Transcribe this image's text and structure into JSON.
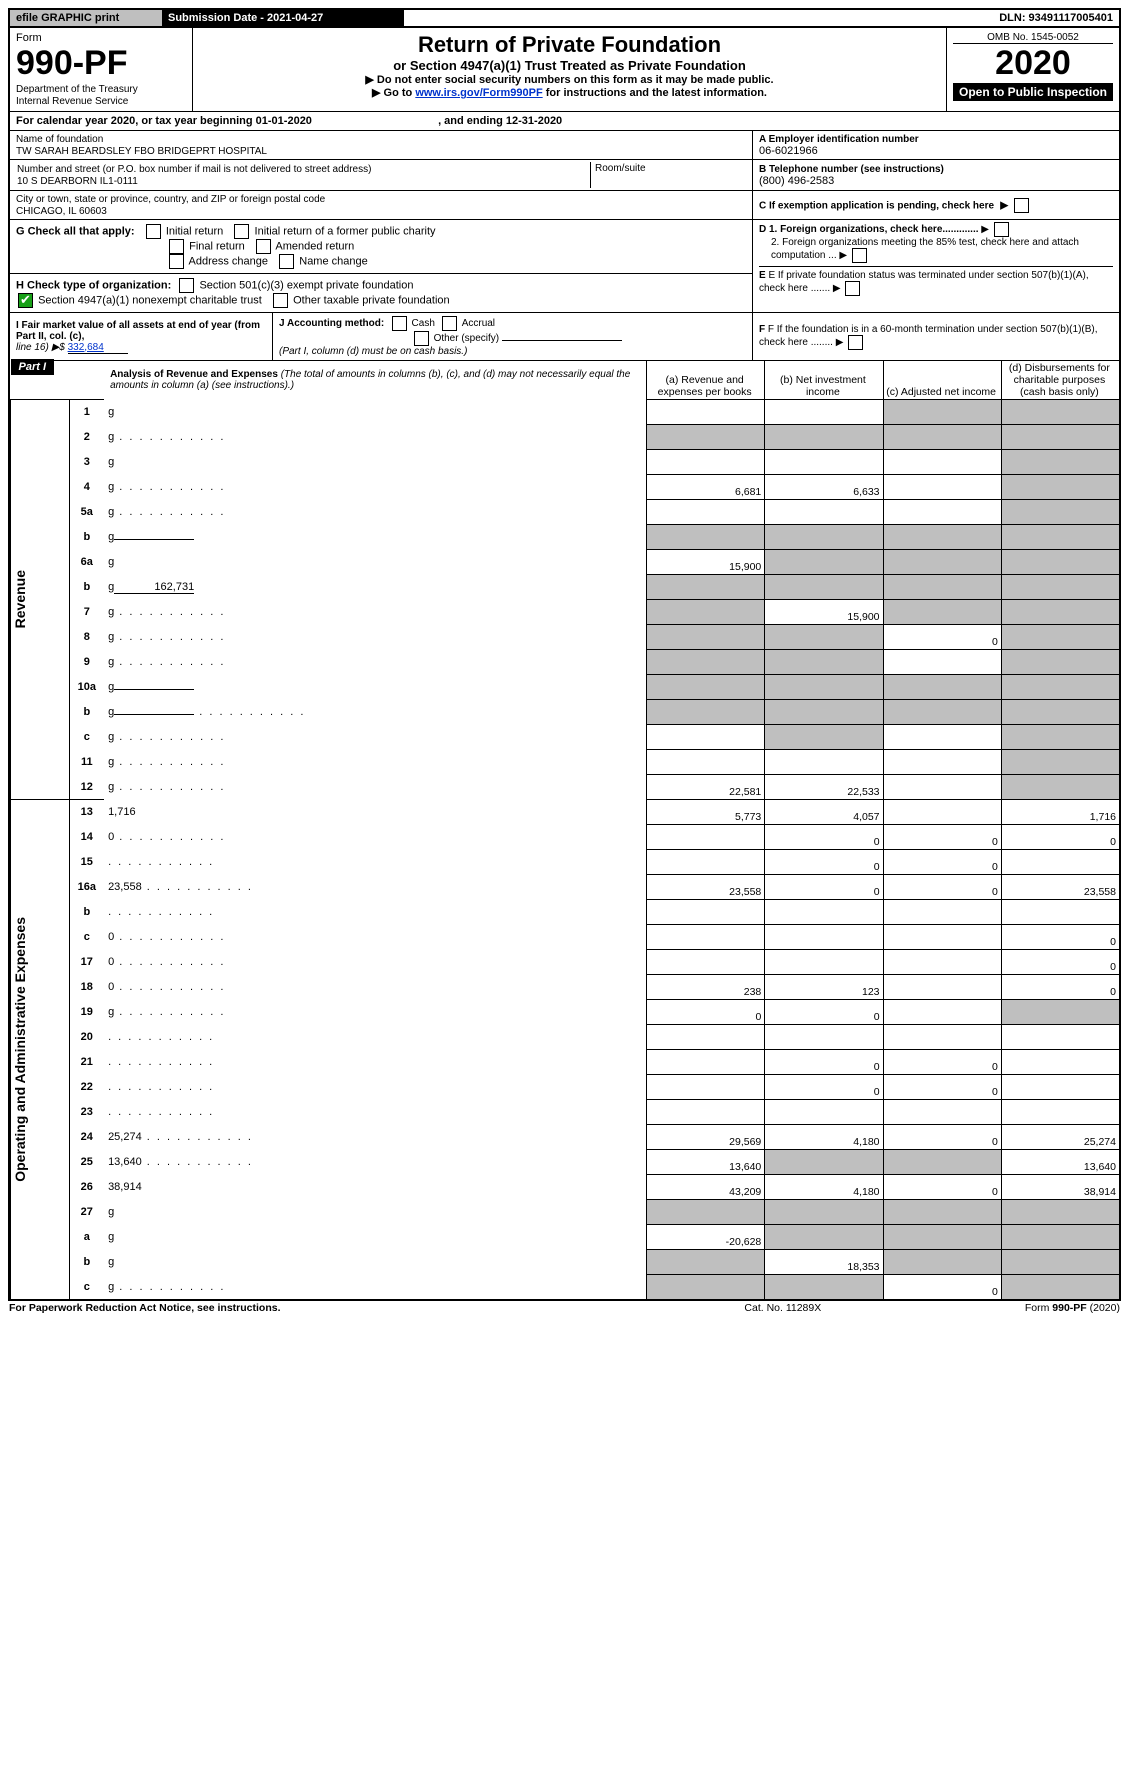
{
  "topbar": {
    "efile": "efile GRAPHIC print",
    "submission": "Submission Date - 2021-04-27",
    "dln": "DLN: 93491117005401"
  },
  "header": {
    "form_label": "Form",
    "form_no": "990-PF",
    "dept": "Department of the Treasury",
    "irs": "Internal Revenue Service",
    "title": "Return of Private Foundation",
    "subtitle": "or Section 4947(a)(1) Trust Treated as Private Foundation",
    "note1": "▶ Do not enter social security numbers on this form as it may be made public.",
    "note2_pre": "▶ Go to ",
    "note2_link": "www.irs.gov/Form990PF",
    "note2_post": " for instructions and the latest information.",
    "omb": "OMB No. 1545-0052",
    "year": "2020",
    "open": "Open to Public Inspection"
  },
  "calendar": {
    "text_pre": "For calendar year 2020, or tax year beginning ",
    "begin": "01-01-2020",
    "mid": ", and ending ",
    "end": "12-31-2020"
  },
  "entity": {
    "name_label": "Name of foundation",
    "name": "TW SARAH BEARDSLEY FBO BRIDGEPRT HOSPITAL",
    "addr_label": "Number and street (or P.O. box number if mail is not delivered to street address)",
    "addr": "10 S DEARBORN IL1-0111",
    "room_label": "Room/suite",
    "city_label": "City or town, state or province, country, and ZIP or foreign postal code",
    "city": "CHICAGO, IL  60603",
    "a_label": "A Employer identification number",
    "a_val": "06-6021966",
    "b_label": "B  Telephone number (see instructions)",
    "b_val": "(800) 496-2583",
    "c_label": "C  If exemption application is pending, check here",
    "d1": "D 1. Foreign organizations, check here.............",
    "d2": "2. Foreign organizations meeting the 85% test, check here and attach computation ...",
    "e_label": "E  If private foundation status was terminated under section 507(b)(1)(A), check here .......",
    "f_label": "F  If the foundation is in a 60-month termination under section 507(b)(1)(B), check here ........"
  },
  "g": {
    "label": "G Check all that apply:",
    "opts": [
      "Initial return",
      "Initial return of a former public charity",
      "Final return",
      "Amended return",
      "Address change",
      "Name change"
    ]
  },
  "h": {
    "label": "H Check type of organization:",
    "opt1": "Section 501(c)(3) exempt private foundation",
    "opt2": "Section 4947(a)(1) nonexempt charitable trust",
    "opt3": "Other taxable private foundation"
  },
  "i": {
    "label": "I Fair market value of all assets at end of year (from Part II, col. (c),",
    "line": "line 16) ▶$ ",
    "val": "332,684"
  },
  "j": {
    "label": "J Accounting method:",
    "cash": "Cash",
    "accrual": "Accrual",
    "other": "Other (specify)",
    "note": "(Part I, column (d) must be on cash basis.)"
  },
  "part1": {
    "hdr": "Part I",
    "title": "Analysis of Revenue and Expenses",
    "title_note": "(The total of amounts in columns (b), (c), and (d) may not necessarily equal the amounts in column (a) (see instructions).)",
    "col_a": "(a)   Revenue and expenses per books",
    "col_b": "(b)  Net investment income",
    "col_c": "(c)  Adjusted net income",
    "col_d": "(d)  Disbursements for charitable purposes (cash basis only)"
  },
  "sections": {
    "revenue": "Revenue",
    "opex": "Operating and Administrative Expenses"
  },
  "rows": [
    {
      "n": "1",
      "d": "g",
      "a": "",
      "b": "",
      "c": "g"
    },
    {
      "n": "2",
      "d": "g",
      "a": "g",
      "b": "g",
      "c": "g",
      "dots": 1
    },
    {
      "n": "3",
      "d": "g",
      "a": "",
      "b": "",
      "c": ""
    },
    {
      "n": "4",
      "d": "g",
      "a": "6,681",
      "b": "6,633",
      "c": "",
      "dots": 1
    },
    {
      "n": "5a",
      "d": "g",
      "a": "",
      "b": "",
      "c": "",
      "dots": 1
    },
    {
      "n": "b",
      "d": "g",
      "a": "g",
      "b": "g",
      "c": "g",
      "uline": 1
    },
    {
      "n": "6a",
      "d": "g",
      "a": "15,900",
      "b": "g",
      "c": "g"
    },
    {
      "n": "b",
      "d": "g",
      "a": "g",
      "b": "g",
      "c": "g",
      "uline": 1,
      "uval": "162,731"
    },
    {
      "n": "7",
      "d": "g",
      "a": "g",
      "b": "15,900",
      "c": "g",
      "dots": 1
    },
    {
      "n": "8",
      "d": "g",
      "a": "g",
      "b": "g",
      "c": "0",
      "dots": 1
    },
    {
      "n": "9",
      "d": "g",
      "a": "g",
      "b": "g",
      "c": "",
      "dots": 1
    },
    {
      "n": "10a",
      "d": "g",
      "a": "g",
      "b": "g",
      "c": "g",
      "uline": 1
    },
    {
      "n": "b",
      "d": "g",
      "a": "g",
      "b": "g",
      "c": "g",
      "uline": 1,
      "dots": 1
    },
    {
      "n": "c",
      "d": "g",
      "a": "",
      "b": "g",
      "c": "",
      "dots": 1
    },
    {
      "n": "11",
      "d": "g",
      "a": "",
      "b": "",
      "c": "",
      "dots": 1
    },
    {
      "n": "12",
      "d": "g",
      "a": "22,581",
      "b": "22,533",
      "c": "",
      "dots": 1
    },
    {
      "n": "13",
      "d": "1,716",
      "a": "5,773",
      "b": "4,057",
      "c": ""
    },
    {
      "n": "14",
      "d": "0",
      "a": "",
      "b": "0",
      "c": "0",
      "dots": 1
    },
    {
      "n": "15",
      "d": "",
      "a": "",
      "b": "0",
      "c": "0",
      "dots": 1
    },
    {
      "n": "16a",
      "d": "23,558",
      "a": "23,558",
      "b": "0",
      "c": "0",
      "dots": 1
    },
    {
      "n": "b",
      "d": "",
      "a": "",
      "b": "",
      "c": "",
      "dots": 1
    },
    {
      "n": "c",
      "d": "0",
      "a": "",
      "b": "",
      "c": "",
      "dots": 1
    },
    {
      "n": "17",
      "d": "0",
      "a": "",
      "b": "",
      "c": "",
      "dots": 1
    },
    {
      "n": "18",
      "d": "0",
      "a": "238",
      "b": "123",
      "c": "",
      "dots": 1
    },
    {
      "n": "19",
      "d": "g",
      "a": "0",
      "b": "0",
      "c": "",
      "dots": 1
    },
    {
      "n": "20",
      "d": "",
      "a": "",
      "b": "",
      "c": "",
      "dots": 1
    },
    {
      "n": "21",
      "d": "",
      "a": "",
      "b": "0",
      "c": "0",
      "dots": 1
    },
    {
      "n": "22",
      "d": "",
      "a": "",
      "b": "0",
      "c": "0",
      "dots": 1
    },
    {
      "n": "23",
      "d": "",
      "a": "",
      "b": "",
      "c": "",
      "dots": 1
    },
    {
      "n": "24",
      "d": "25,274",
      "a": "29,569",
      "b": "4,180",
      "c": "0",
      "dots": 1
    },
    {
      "n": "25",
      "d": "13,640",
      "a": "13,640",
      "b": "g",
      "c": "g",
      "dots": 1
    },
    {
      "n": "26",
      "d": "38,914",
      "a": "43,209",
      "b": "4,180",
      "c": "0"
    },
    {
      "n": "27",
      "d": "g",
      "a": "g",
      "b": "g",
      "c": "g"
    },
    {
      "n": "a",
      "d": "g",
      "a": "-20,628",
      "b": "g",
      "c": "g"
    },
    {
      "n": "b",
      "d": "g",
      "a": "g",
      "b": "18,353",
      "c": "g"
    },
    {
      "n": "c",
      "d": "g",
      "a": "g",
      "b": "g",
      "c": "0",
      "dots": 1
    }
  ],
  "footer": {
    "left": "For Paperwork Reduction Act Notice, see instructions.",
    "mid": "Cat. No. 11289X",
    "right": "Form 990-PF (2020)"
  }
}
